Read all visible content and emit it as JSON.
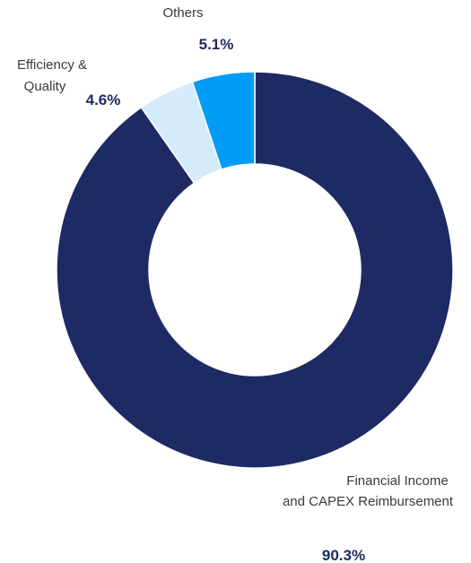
{
  "chart_data": {
    "type": "pie",
    "donut": true,
    "slices": [
      {
        "label_lines": [
          "Financial Income",
          "and CAPEX Reimbursement"
        ],
        "value": 90.3,
        "value_label": "90.3%",
        "color": "#1e2a63"
      },
      {
        "label_lines": [
          "Efficiency &",
          "Quality"
        ],
        "value": 4.6,
        "value_label": "4.6%",
        "color": "#d3ebfb"
      },
      {
        "label_lines": [
          "Others"
        ],
        "value": 5.1,
        "value_label": "5.1%",
        "color": "#009cf7"
      }
    ],
    "legend": "none"
  }
}
